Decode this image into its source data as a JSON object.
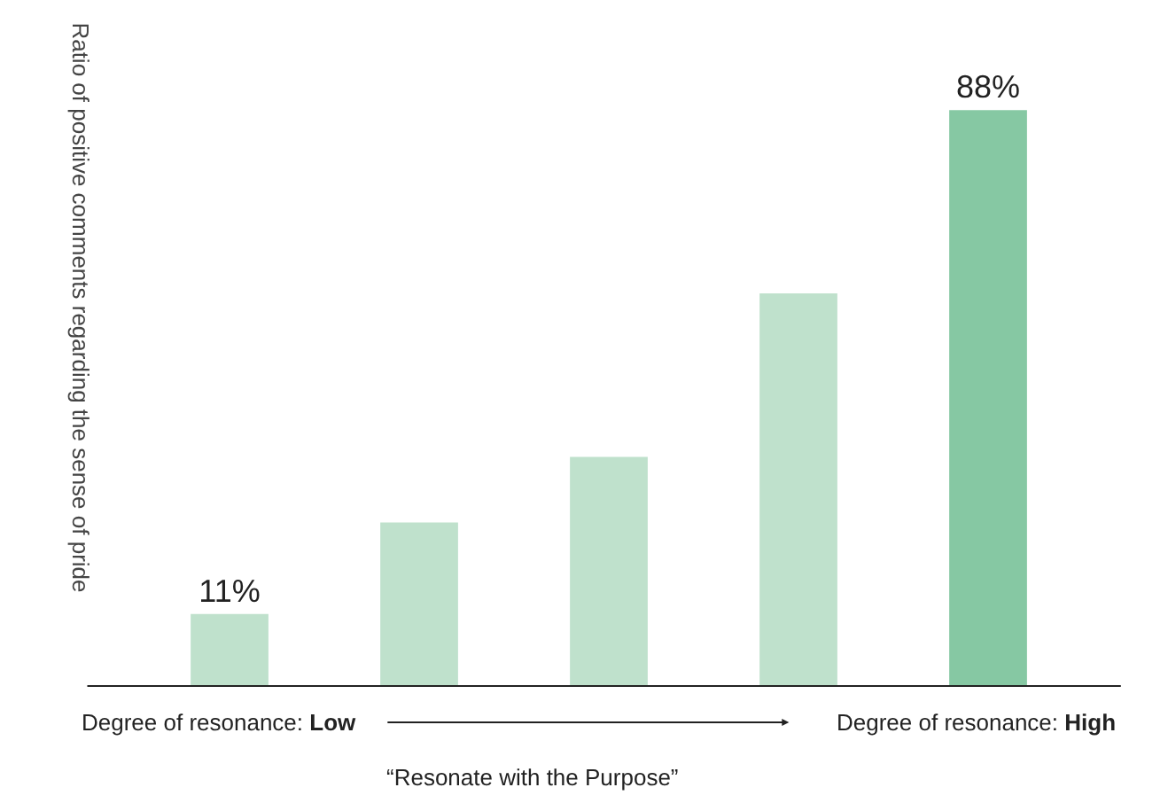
{
  "chart_data": {
    "type": "bar",
    "categories": [
      null,
      null,
      null,
      null,
      null
    ],
    "values": [
      11,
      25,
      35,
      60,
      88
    ],
    "colors": [
      "#bfe1cc",
      "#bfe1cc",
      "#bfe1cc",
      "#bfe1cc",
      "#86c8a3"
    ],
    "value_labels": [
      "11%",
      null,
      null,
      null,
      "88%"
    ],
    "ylabel": "Ratio of positive comments regarding the sense of pride",
    "tick_labels": false,
    "legend": false,
    "annotations": [
      "Degree of resonance: Low",
      "Degree of resonance: High",
      "“Resonate with the Purpose”"
    ]
  }
}
